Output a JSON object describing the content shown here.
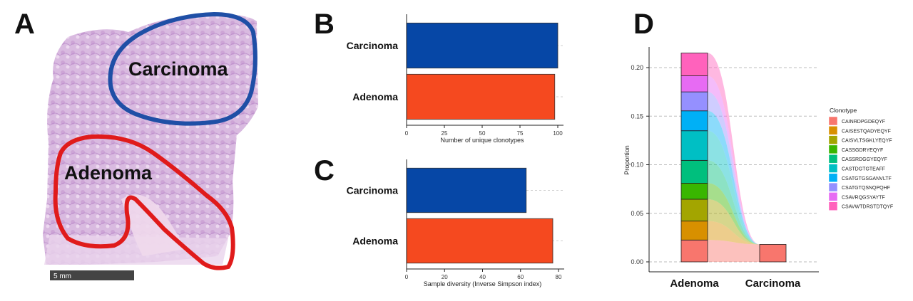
{
  "panels": {
    "a": {
      "letter": "A",
      "regions": [
        {
          "label": "Carcinoma",
          "color": "#1f4fa6"
        },
        {
          "label": "Adenoma",
          "color": "#e01b1b"
        }
      ],
      "scalebar_label": "5 mm"
    },
    "b": {
      "letter": "B"
    },
    "c": {
      "letter": "C"
    },
    "d": {
      "letter": "D"
    }
  },
  "chart_data": [
    {
      "id": "B",
      "type": "bar",
      "orientation": "horizontal",
      "categories": [
        "Carcinoma",
        "Adenoma"
      ],
      "values": [
        100,
        98
      ],
      "colors": [
        "#0647a6",
        "#f5491f"
      ],
      "xlabel": "Number of unique clonotypes",
      "xlim": [
        0,
        100
      ],
      "xticks": [
        "0",
        "25",
        "50",
        "75",
        "100"
      ]
    },
    {
      "id": "C",
      "type": "bar",
      "orientation": "horizontal",
      "categories": [
        "Carcinoma",
        "Adenoma"
      ],
      "values": [
        63,
        77
      ],
      "colors": [
        "#0647a6",
        "#f5491f"
      ],
      "xlabel": "Sample diversity (Inverse Simpson index)",
      "xlim": [
        0,
        80
      ],
      "xticks": [
        "0",
        "20",
        "40",
        "60",
        "80"
      ]
    },
    {
      "id": "D",
      "type": "stacked-bar",
      "categories": [
        "Adenoma",
        "Carcinoma"
      ],
      "ylabel": "Proportion",
      "ylim": [
        0,
        0.23
      ],
      "yticks": [
        "0.00",
        "0.05",
        "0.10",
        "0.15",
        "0.20"
      ],
      "legend_title": "Clonotype",
      "series": [
        {
          "name": "CAINRDPGDEQYF",
          "color": "#f8766d",
          "values": [
            0.0225,
            0.018
          ]
        },
        {
          "name": "CAISESTQADYEQYF",
          "color": "#d89000",
          "values": [
            0.0195,
            0
          ]
        },
        {
          "name": "CAISVLTSGKLYEQYF",
          "color": "#a3a500",
          "values": [
            0.0225,
            0
          ]
        },
        {
          "name": "CASSGDRYEQYF",
          "color": "#39b600",
          "values": [
            0.0165,
            0
          ]
        },
        {
          "name": "CASSRDGGYEQYF",
          "color": "#00bf7d",
          "values": [
            0.0235,
            0
          ]
        },
        {
          "name": "CASTDGTGTEAFF",
          "color": "#00bfc4",
          "values": [
            0.0305,
            0
          ]
        },
        {
          "name": "CSATGTGSGANVLTF",
          "color": "#00b0f6",
          "values": [
            0.0205,
            0
          ]
        },
        {
          "name": "CSATGTQSNQPQHF",
          "color": "#9590ff",
          "values": [
            0.0195,
            0
          ]
        },
        {
          "name": "CSAVRQGSYAYTF",
          "color": "#e76bf3",
          "values": [
            0.0165,
            0
          ]
        },
        {
          "name": "CSAVWTDRSTDTQYF",
          "color": "#ff62bc",
          "values": [
            0.0235,
            0
          ]
        }
      ]
    }
  ]
}
